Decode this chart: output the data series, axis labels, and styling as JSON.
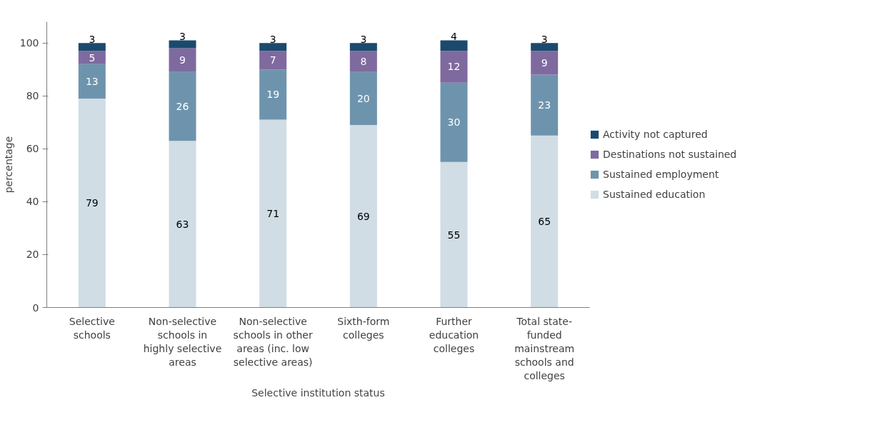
{
  "chart_data": {
    "type": "bar",
    "stacked": true,
    "xlabel": "Selective institution status",
    "ylabel": "percentage",
    "categories": [
      "Selective schools",
      "Non-selective schools in highly selective areas",
      "Non-selective schools in other areas (inc. low selective areas)",
      "Sixth-form colleges",
      "Further education colleges",
      "Total state-funded mainstream schools and colleges"
    ],
    "series": [
      {
        "name": "Sustained education",
        "color": "#d0dde5",
        "values": [
          79,
          63,
          71,
          69,
          55,
          65
        ]
      },
      {
        "name": "Sustained employment",
        "color": "#6e94ad",
        "values": [
          13,
          26,
          19,
          20,
          30,
          23
        ]
      },
      {
        "name": "Destinations not sustained",
        "color": "#7f6a9f",
        "values": [
          5,
          9,
          7,
          8,
          12,
          9
        ]
      },
      {
        "name": "Activity not captured",
        "color": "#1b4a6e",
        "values": [
          3,
          3,
          3,
          3,
          4,
          3
        ]
      }
    ],
    "ylim": [
      0,
      108
    ],
    "yticks": [
      0,
      20,
      40,
      60,
      80,
      100
    ],
    "grid": false,
    "legend": "right",
    "data_labels": true
  }
}
